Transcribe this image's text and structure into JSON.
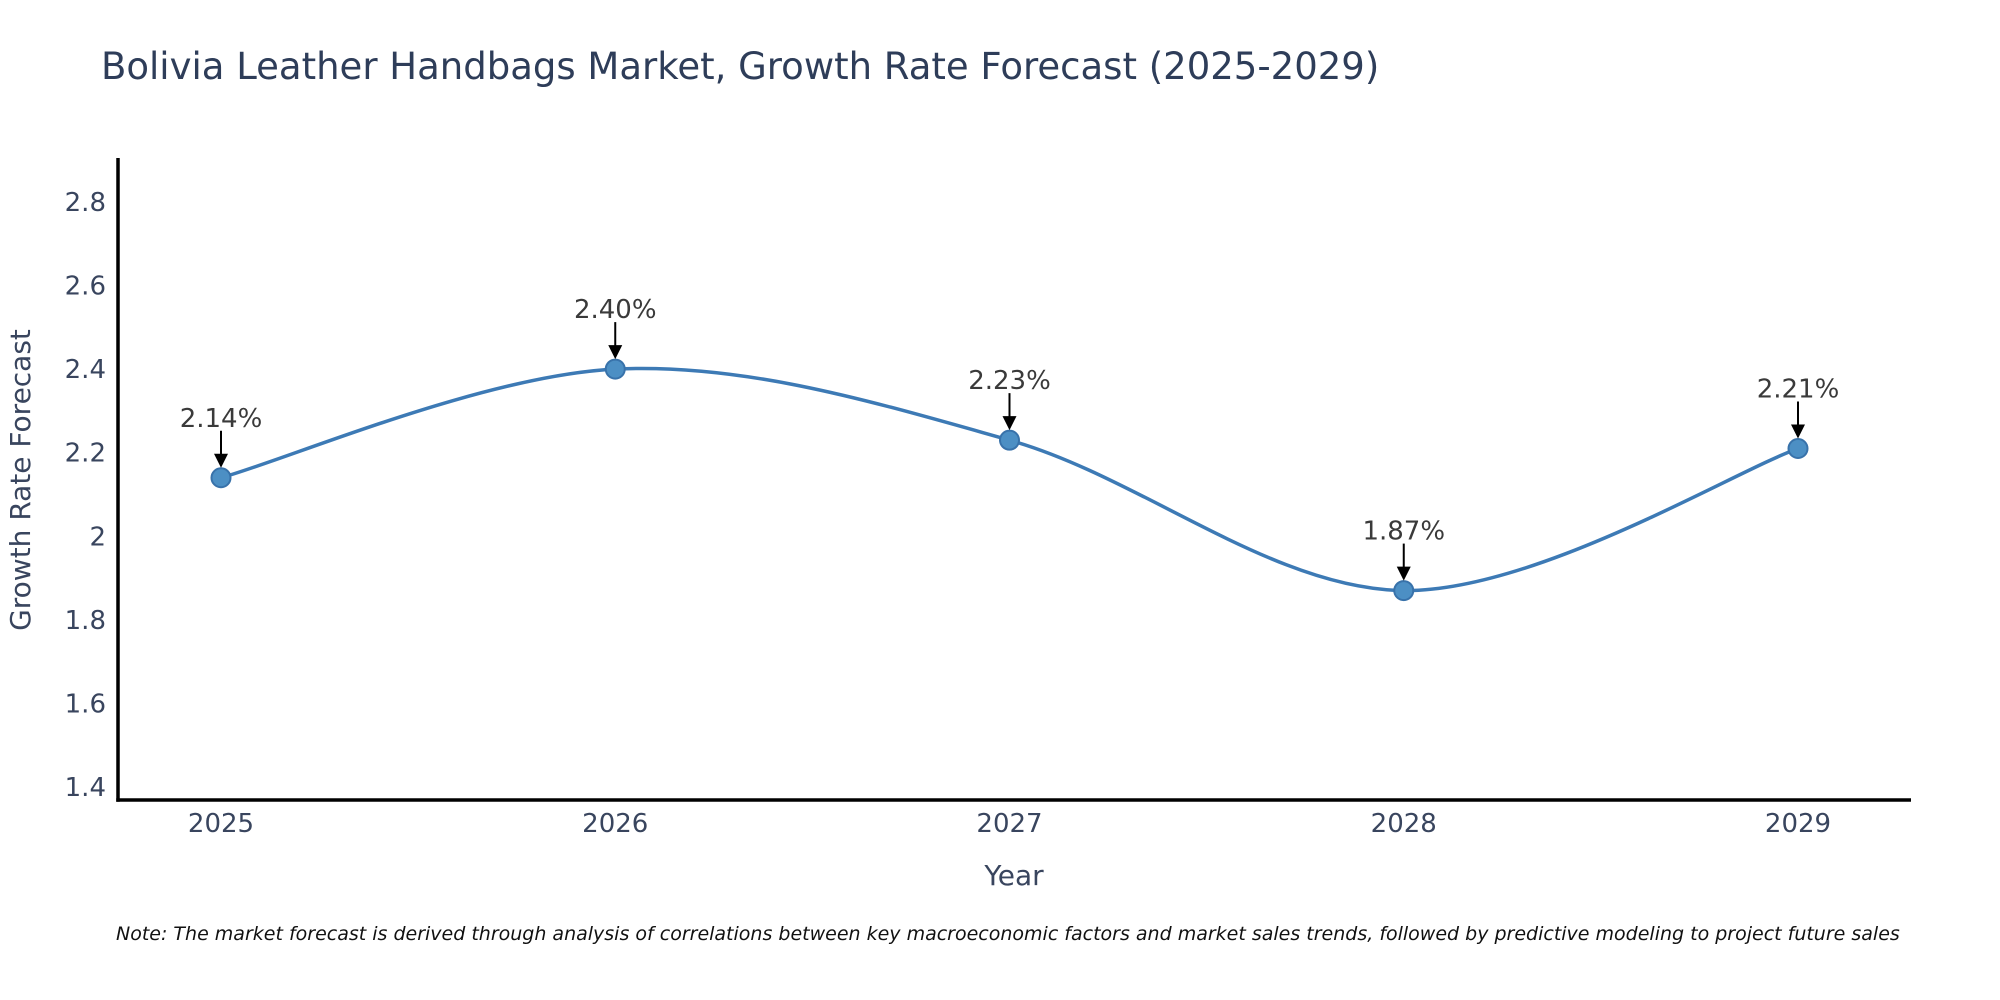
{
  "page": {
    "background_color": "#ffffff"
  },
  "chart_data": {
    "type": "line",
    "title": "Bolivia Leather Handbags Market, Growth Rate Forecast (2025-2029)",
    "xlabel": "Year",
    "ylabel": "Growth Rate Forecast",
    "categories": [
      "2025",
      "2026",
      "2027",
      "2028",
      "2029"
    ],
    "series": [
      {
        "name": "Growth Rate Forecast",
        "values": [
          2.14,
          2.4,
          2.23,
          1.87,
          2.21
        ]
      }
    ],
    "point_labels": [
      "2.14%",
      "2.40%",
      "2.23%",
      "1.87%",
      "2.21%"
    ],
    "yticks": [
      1.4,
      1.6,
      1.8,
      2,
      2.2,
      2.4,
      2.6,
      2.8
    ],
    "ytick_labels": [
      "1.4",
      "1.6",
      "1.8",
      "2",
      "2.2",
      "2.4",
      "2.6",
      "2.8"
    ],
    "ylim": [
      1.37,
      2.9
    ],
    "grid": false,
    "legend_position": "none",
    "line_style": "smooth-spline",
    "marker_style": "circle",
    "annotation_arrows": "down-arrow-black",
    "colors": {
      "line": "#3d7ab5",
      "marker_fill": "#4c8fc4",
      "marker_edge": "#3872aa",
      "axis_line": "#000000",
      "title_text": "#2e3d59",
      "tick_text": "#39455e",
      "annotation_text": "#3a3a3a",
      "note_text": "#111111"
    }
  },
  "note": {
    "text": "Note: The market forecast is derived through analysis of correlations between key macroeconomic factors and market sales trends, followed by predictive modeling to project future sales"
  }
}
